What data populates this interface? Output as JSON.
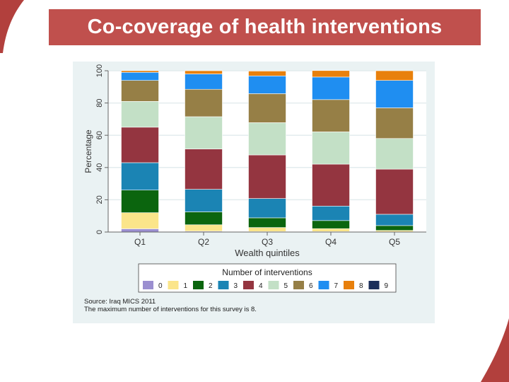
{
  "slide": {
    "title": "Co-coverage of health interventions",
    "accent_color": "#c0504d"
  },
  "chart_data": {
    "type": "bar",
    "stacked": true,
    "xlabel": "Wealth quintiles",
    "ylabel": "Percentage",
    "ylim": [
      0,
      100
    ],
    "yticks": [
      0,
      20,
      40,
      60,
      80,
      100
    ],
    "categories": [
      "Q1",
      "Q2",
      "Q3",
      "Q4",
      "Q5"
    ],
    "legend_title": "Number of interventions",
    "legend_position": "bottom",
    "series": [
      {
        "name": "0",
        "color": "#9b8fd0",
        "values": [
          2,
          0.5,
          0.3,
          0.3,
          0.2
        ]
      },
      {
        "name": "1",
        "color": "#fbe58a",
        "values": [
          10,
          4,
          2.5,
          1.8,
          0.8
        ]
      },
      {
        "name": "2",
        "color": "#0b650e",
        "values": [
          14,
          8,
          6,
          5,
          3
        ]
      },
      {
        "name": "3",
        "color": "#1b84b4",
        "values": [
          17,
          14,
          12,
          9,
          7
        ]
      },
      {
        "name": "4",
        "color": "#943540",
        "values": [
          22,
          25,
          27,
          26,
          28
        ]
      },
      {
        "name": "5",
        "color": "#c3e0c6",
        "values": [
          16,
          20,
          20,
          20,
          19
        ]
      },
      {
        "name": "6",
        "color": "#967f46",
        "values": [
          13,
          17,
          18,
          20,
          19
        ]
      },
      {
        "name": "7",
        "color": "#1f8ef1",
        "values": [
          5,
          9.5,
          11,
          14,
          17
        ]
      },
      {
        "name": "8",
        "color": "#e8800c",
        "values": [
          1,
          2,
          3,
          4,
          6
        ]
      },
      {
        "name": "9",
        "color": "#1b2e5a",
        "values": [
          0,
          0,
          0,
          0,
          0
        ]
      }
    ],
    "notes": [
      "Source: Iraq MICS 2011",
      "The maximum number of interventions for this survey is 8."
    ]
  }
}
